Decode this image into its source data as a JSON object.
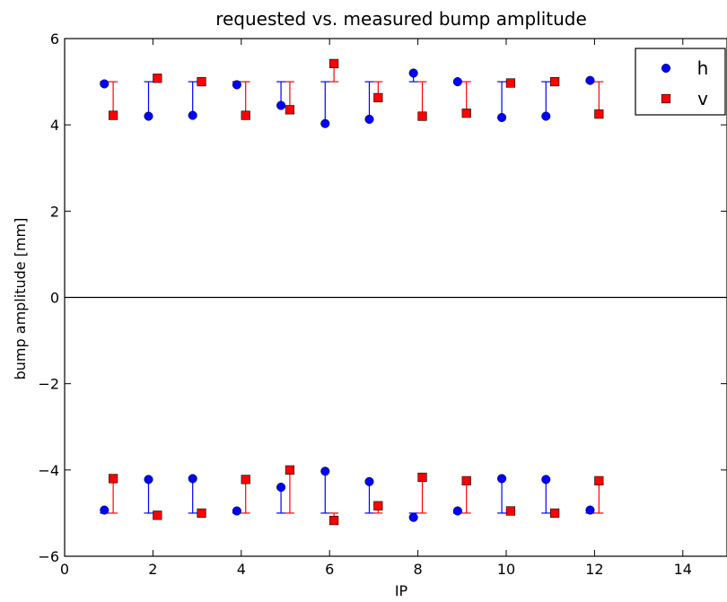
{
  "chart_data": {
    "type": "scatter",
    "title": "requested vs. measured bump amplitude",
    "xlabel": "IP",
    "ylabel": "bump amplitude [mm]",
    "xlim": [
      0,
      15
    ],
    "ylim": [
      -6,
      6
    ],
    "xticks": [
      0,
      2,
      4,
      6,
      8,
      10,
      12,
      14
    ],
    "yticks": [
      -6,
      -4,
      -2,
      0,
      2,
      4,
      6
    ],
    "xtick_labels": [
      "0",
      "2",
      "4",
      "6",
      "8",
      "10",
      "12",
      "14"
    ],
    "ytick_labels": [
      "−6",
      "−4",
      "−2",
      "0",
      "2",
      "4",
      "6"
    ],
    "grid": false,
    "zero_line": true,
    "legend_position": "top-right",
    "requested_amplitude": [
      5,
      -5
    ],
    "series": [
      {
        "name": "h",
        "color": "#0000ff",
        "marker": "circle",
        "x": [
          0.9,
          1.9,
          2.9,
          3.9,
          4.9,
          5.9,
          6.9,
          7.9,
          8.9,
          9.9,
          10.9,
          11.9
        ],
        "y_pos": [
          4.95,
          4.2,
          4.22,
          4.93,
          4.45,
          4.03,
          4.13,
          5.2,
          5.0,
          4.17,
          4.2,
          5.03
        ],
        "y_neg": [
          -4.93,
          -4.22,
          -4.2,
          -4.95,
          -4.4,
          -4.03,
          -4.27,
          -5.1,
          -4.95,
          -4.2,
          -4.22,
          -4.93
        ]
      },
      {
        "name": "v",
        "color": "#ff0000",
        "marker": "square",
        "x": [
          1.1,
          2.1,
          3.1,
          4.1,
          5.1,
          6.1,
          7.1,
          8.1,
          9.1,
          10.1,
          11.1,
          12.1
        ],
        "y_pos": [
          4.22,
          5.08,
          5.0,
          4.22,
          4.35,
          5.42,
          4.63,
          4.2,
          4.27,
          4.97,
          5.0,
          4.25
        ],
        "y_neg": [
          -4.2,
          -5.05,
          -5.0,
          -4.22,
          -4.0,
          -5.17,
          -4.83,
          -4.17,
          -4.25,
          -4.95,
          -5.0,
          -4.25
        ]
      }
    ]
  }
}
